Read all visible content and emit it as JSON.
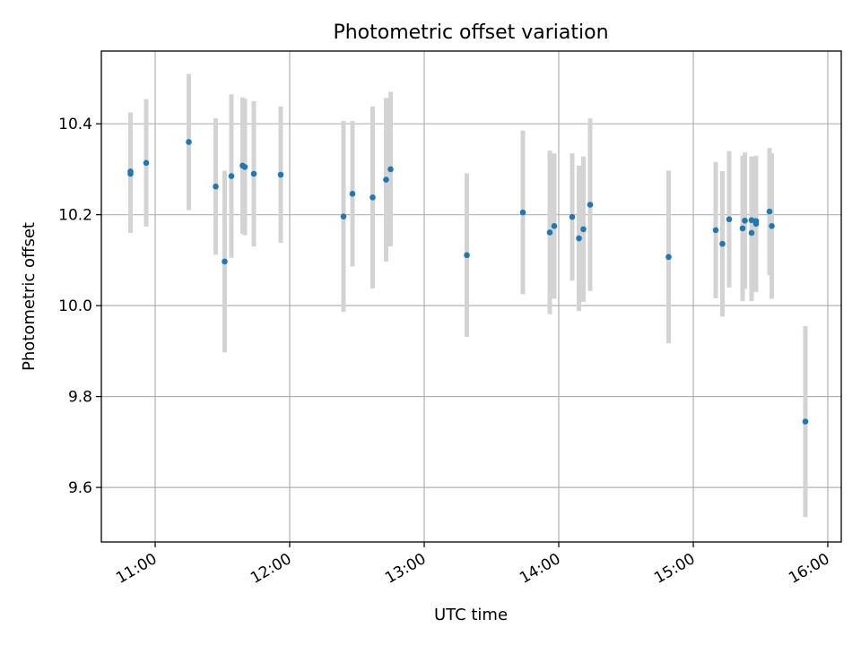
{
  "chart_data": {
    "type": "scatter",
    "title": "Photometric offset variation",
    "xlabel": "UTC time",
    "ylabel": "Photometric offset",
    "x_unit": "time (HH:MM, UTC)",
    "xlim": [
      "10:36",
      "16:06"
    ],
    "ylim": [
      9.48,
      10.56
    ],
    "xticks": [
      "11:00",
      "12:00",
      "13:00",
      "14:00",
      "15:00",
      "16:00"
    ],
    "yticks": [
      9.6,
      9.8,
      10.0,
      10.2,
      10.4
    ],
    "ytick_labels": [
      "9.6",
      "9.8",
      "10.0",
      "10.2",
      "10.4"
    ],
    "grid": true,
    "legend": "none",
    "colors": {
      "points": "#1f77b4",
      "error_bars": "#d3d3d3",
      "grid": "#b0b0b0"
    },
    "series": [
      {
        "points": [
          {
            "x": "10:49",
            "y": 10.295,
            "err": 0.13
          },
          {
            "x": "10:49",
            "y": 10.29,
            "err": 0.13
          },
          {
            "x": "10:56",
            "y": 10.314,
            "err": 0.14
          },
          {
            "x": "11:15",
            "y": 10.36,
            "err": 0.15
          },
          {
            "x": "11:27",
            "y": 10.262,
            "err": 0.15
          },
          {
            "x": "11:31",
            "y": 10.097,
            "err": 0.2
          },
          {
            "x": "11:34",
            "y": 10.285,
            "err": 0.18
          },
          {
            "x": "11:39",
            "y": 10.308,
            "err": 0.15
          },
          {
            "x": "11:40",
            "y": 10.305,
            "err": 0.15
          },
          {
            "x": "11:44",
            "y": 10.29,
            "err": 0.16
          },
          {
            "x": "11:56",
            "y": 10.288,
            "err": 0.15
          },
          {
            "x": "12:24",
            "y": 10.196,
            "err": 0.21
          },
          {
            "x": "12:28",
            "y": 10.246,
            "err": 0.16
          },
          {
            "x": "12:37",
            "y": 10.238,
            "err": 0.2
          },
          {
            "x": "12:43",
            "y": 10.277,
            "err": 0.18
          },
          {
            "x": "12:45",
            "y": 10.3,
            "err": 0.17
          },
          {
            "x": "13:19",
            "y": 10.111,
            "err": 0.18
          },
          {
            "x": "13:44",
            "y": 10.205,
            "err": 0.18
          },
          {
            "x": "13:56",
            "y": 10.161,
            "err": 0.18
          },
          {
            "x": "13:58",
            "y": 10.175,
            "err": 0.16
          },
          {
            "x": "14:06",
            "y": 10.195,
            "err": 0.14
          },
          {
            "x": "14:09",
            "y": 10.148,
            "err": 0.16
          },
          {
            "x": "14:11",
            "y": 10.168,
            "err": 0.16
          },
          {
            "x": "14:14",
            "y": 10.222,
            "err": 0.19
          },
          {
            "x": "14:49",
            "y": 10.107,
            "err": 0.19
          },
          {
            "x": "15:10",
            "y": 10.166,
            "err": 0.15
          },
          {
            "x": "15:13",
            "y": 10.136,
            "err": 0.16
          },
          {
            "x": "15:16",
            "y": 10.19,
            "err": 0.15
          },
          {
            "x": "15:22",
            "y": 10.17,
            "err": 0.16
          },
          {
            "x": "15:23",
            "y": 10.187,
            "err": 0.15
          },
          {
            "x": "15:26",
            "y": 10.16,
            "err": 0.15
          },
          {
            "x": "15:26",
            "y": 10.188,
            "err": 0.14
          },
          {
            "x": "15:28",
            "y": 10.18,
            "err": 0.15
          },
          {
            "x": "15:28",
            "y": 10.186,
            "err": 0.14
          },
          {
            "x": "15:34",
            "y": 10.207,
            "err": 0.14
          },
          {
            "x": "15:35",
            "y": 10.175,
            "err": 0.16
          },
          {
            "x": "15:50",
            "y": 9.745,
            "err": 0.21
          }
        ]
      }
    ]
  }
}
